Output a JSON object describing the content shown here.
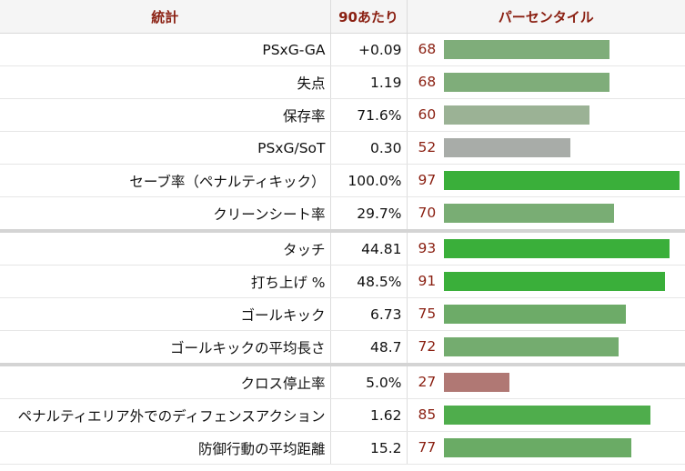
{
  "header": {
    "stat": "統計",
    "per90": "90あたり",
    "percentile": "パーセンタイル"
  },
  "groups": [
    [
      {
        "name": "PSxG-GA",
        "per90": "+0.09",
        "percentile": 68,
        "color": "#7fad7a"
      },
      {
        "name": "失点",
        "per90": "1.19",
        "percentile": 68,
        "color": "#7fad7a"
      },
      {
        "name": "保存率",
        "per90": "71.6%",
        "percentile": 60,
        "color": "#9bb295"
      },
      {
        "name": "PSxG/SoT",
        "per90": "0.30",
        "percentile": 52,
        "color": "#a8aca8"
      },
      {
        "name": "セーブ率（ペナルティキック）",
        "per90": "100.0%",
        "percentile": 97,
        "color": "#3aaf3a"
      },
      {
        "name": "クリーンシート率",
        "per90": "29.7%",
        "percentile": 70,
        "color": "#79ad74"
      }
    ],
    [
      {
        "name": "タッチ",
        "per90": "44.81",
        "percentile": 93,
        "color": "#3aaf3a"
      },
      {
        "name": "打ち上げ %",
        "per90": "48.5%",
        "percentile": 91,
        "color": "#3aaf3a"
      },
      {
        "name": "ゴールキック",
        "per90": "6.73",
        "percentile": 75,
        "color": "#6dab68"
      },
      {
        "name": "ゴールキックの平均長さ",
        "per90": "48.7",
        "percentile": 72,
        "color": "#74ac6f"
      }
    ],
    [
      {
        "name": "クロス停止率",
        "per90": "5.0%",
        "percentile": 27,
        "color": "#b07874"
      },
      {
        "name": "ペナルティエリア外でのディフェンスアクション",
        "per90": "1.62",
        "percentile": 85,
        "color": "#4fad4c"
      },
      {
        "name": "防御行動の平均距離",
        "per90": "15.2",
        "percentile": 77,
        "color": "#6aab65"
      }
    ]
  ]
}
